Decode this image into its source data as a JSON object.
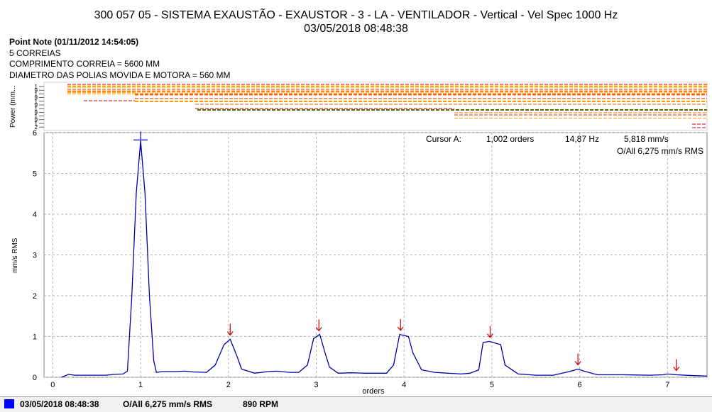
{
  "header": {
    "title_line1": "300 057 05 - SISTEMA EXAUSTÃO - EXAUSTOR - 3 - LA - VENTILADOR - Vertical - Vel Spec 1000 Hz",
    "title_line2": "03/05/2018 08:48:38"
  },
  "point_note": {
    "heading": "Point Note (01/11/2012 14:54:05)",
    "lines": [
      "5 CORREIAS",
      "COMPRIMENTO CORREIA = 5600 MM",
      "DIAMETRO DAS POLIAS MOVIDA E MOTORA = 560 MM"
    ]
  },
  "cursor": {
    "label": "Cursor A:",
    "orders": "1,002 orders",
    "freq": "14,87 Hz",
    "amp": "5,818 mm/s",
    "overall": "O/All 6,275 mm/s RMS"
  },
  "status_bar": {
    "date": "03/05/2018 08:48:38",
    "overall": "O/All 6,275 mm/s RMS",
    "rpm": "890 RPM",
    "swatch_color": "#0000ff"
  },
  "chart_data": [
    {
      "type": "line",
      "name": "power-strip",
      "ylabel": "Power (mm...",
      "tick_labels": [
        "1",
        "9",
        "1",
        "9",
        "1",
        "9",
        "1",
        "9",
        "1",
        "9",
        "1",
        "2"
      ]
    },
    {
      "type": "line",
      "xlabel": "orders",
      "ylabel": "mm/s RMS",
      "xlim": [
        -0.1,
        7.45
      ],
      "ylim": [
        0,
        6
      ],
      "x_ticks": [
        0,
        1,
        2,
        3,
        4,
        5,
        6,
        7
      ],
      "y_ticks": [
        0,
        1,
        2,
        3,
        4,
        5,
        6
      ],
      "grid": true,
      "line_color": "#0000aa",
      "marker_color": "#cc0000",
      "series": [
        {
          "x": [
            0.1,
            0.18,
            0.25,
            0.35,
            0.5,
            0.6,
            0.7,
            0.8,
            0.85,
            0.9,
            0.95,
            1.0,
            1.05,
            1.1,
            1.15,
            1.18,
            1.25,
            1.4,
            1.5,
            1.6,
            1.75,
            1.85,
            1.95,
            2.02,
            2.1,
            2.15,
            2.3,
            2.45,
            2.55,
            2.7,
            2.8,
            2.9,
            2.97,
            3.04,
            3.1,
            3.15,
            3.25,
            3.4,
            3.55,
            3.7,
            3.8,
            3.88,
            3.95,
            4.05,
            4.1,
            4.2,
            4.35,
            4.5,
            4.65,
            4.75,
            4.85,
            4.9,
            4.97,
            5.1,
            5.15,
            5.3,
            5.5,
            5.7,
            5.8,
            5.9,
            5.98,
            6.05,
            6.2,
            6.5,
            6.8,
            6.95,
            7.0,
            7.1,
            7.3,
            7.45
          ],
          "y": [
            0.0,
            0.07,
            0.05,
            0.05,
            0.05,
            0.05,
            0.07,
            0.08,
            0.15,
            2.0,
            4.5,
            5.8,
            4.5,
            2.0,
            0.4,
            0.12,
            0.14,
            0.14,
            0.15,
            0.13,
            0.12,
            0.3,
            0.8,
            0.93,
            0.5,
            0.2,
            0.1,
            0.14,
            0.15,
            0.12,
            0.12,
            0.3,
            0.95,
            1.05,
            0.6,
            0.25,
            0.1,
            0.11,
            0.1,
            0.1,
            0.1,
            0.3,
            1.05,
            1.0,
            0.6,
            0.18,
            0.12,
            0.1,
            0.08,
            0.1,
            0.18,
            0.85,
            0.88,
            0.8,
            0.3,
            0.08,
            0.05,
            0.05,
            0.1,
            0.15,
            0.2,
            0.15,
            0.06,
            0.06,
            0.05,
            0.06,
            0.08,
            0.06,
            0.04,
            0.03
          ]
        }
      ],
      "harmonic_markers": [
        1.0,
        2.02,
        3.03,
        3.96,
        4.98,
        5.98,
        7.1
      ],
      "cursor_x": 1.0,
      "cursor_y": 5.82
    }
  ]
}
